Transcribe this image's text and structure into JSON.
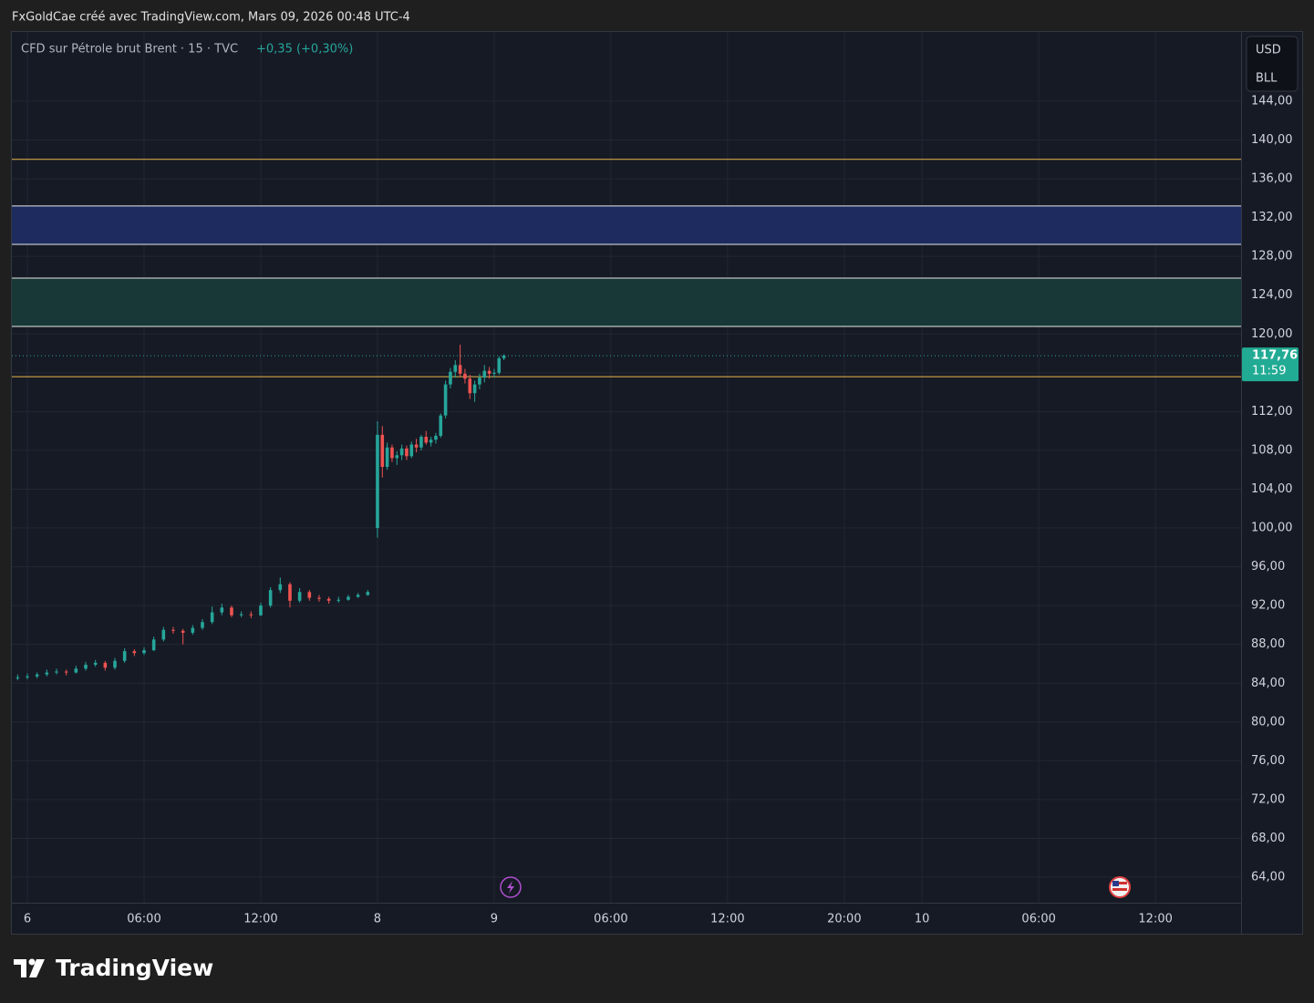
{
  "header": {
    "credit": "FxGoldCae créé avec TradingView.com, Mars 09, 2026 00:48 UTC-4"
  },
  "footer": {
    "logo": "TradingView"
  },
  "chart_data": {
    "type": "candlestick",
    "title": "CFD sur Pétrole brut Brent · 15 · TVC",
    "change": "+0,35 (+0,30%)",
    "currency": "USD",
    "unit": "BLL",
    "up_color": "#26a69a",
    "down_color": "#ef5350",
    "grid": true,
    "x": [
      -2,
      0,
      2,
      4,
      6,
      8,
      10,
      12,
      14,
      16,
      18,
      20,
      22,
      24,
      26,
      28,
      30,
      32,
      34,
      36,
      38,
      40,
      42,
      44,
      46,
      48,
      50,
      52,
      54,
      56,
      58,
      60,
      62,
      64,
      66,
      68,
      70,
      72,
      73,
      74,
      75,
      76,
      77,
      78,
      79,
      80,
      81,
      82,
      83,
      84,
      85,
      86,
      87,
      88,
      89,
      90,
      91,
      92,
      93,
      94,
      95,
      96,
      97,
      98
    ],
    "ohlc": [
      [
        84.5,
        84.9,
        84.3,
        84.6
      ],
      [
        84.6,
        85.0,
        84.4,
        84.7
      ],
      [
        84.7,
        85.1,
        84.5,
        84.9
      ],
      [
        84.9,
        85.4,
        84.7,
        85.1
      ],
      [
        85.1,
        85.5,
        84.9,
        85.2
      ],
      [
        85.2,
        85.4,
        84.8,
        85.1
      ],
      [
        85.1,
        85.8,
        85.0,
        85.5
      ],
      [
        85.5,
        86.2,
        85.3,
        85.9
      ],
      [
        85.9,
        86.4,
        85.7,
        86.1
      ],
      [
        86.1,
        86.3,
        85.3,
        85.6
      ],
      [
        85.6,
        86.6,
        85.4,
        86.3
      ],
      [
        86.3,
        87.6,
        86.1,
        87.3
      ],
      [
        87.3,
        87.5,
        86.8,
        87.1
      ],
      [
        87.1,
        87.7,
        86.9,
        87.4
      ],
      [
        87.4,
        88.8,
        87.3,
        88.5
      ],
      [
        88.5,
        89.8,
        88.3,
        89.5
      ],
      [
        89.5,
        89.8,
        89.1,
        89.4
      ],
      [
        89.4,
        89.6,
        88.0,
        89.2
      ],
      [
        89.2,
        90.0,
        89.0,
        89.7
      ],
      [
        89.7,
        90.6,
        89.5,
        90.3
      ],
      [
        90.3,
        91.9,
        90.1,
        91.3
      ],
      [
        91.3,
        92.2,
        91.0,
        91.8
      ],
      [
        91.8,
        92.0,
        90.8,
        91.0
      ],
      [
        91.0,
        91.4,
        90.8,
        91.1
      ],
      [
        91.1,
        91.4,
        90.7,
        91.0
      ],
      [
        91.0,
        92.3,
        90.9,
        92.0
      ],
      [
        92.0,
        93.9,
        91.8,
        93.6
      ],
      [
        93.6,
        94.9,
        93.3,
        94.2
      ],
      [
        94.2,
        94.4,
        91.8,
        92.5
      ],
      [
        92.5,
        93.8,
        92.3,
        93.4
      ],
      [
        93.4,
        93.6,
        92.5,
        92.8
      ],
      [
        92.8,
        93.1,
        92.4,
        92.7
      ],
      [
        92.7,
        92.9,
        92.2,
        92.5
      ],
      [
        92.5,
        92.9,
        92.3,
        92.6
      ],
      [
        92.6,
        93.1,
        92.5,
        92.9
      ],
      [
        92.9,
        93.3,
        92.8,
        93.1
      ],
      [
        93.1,
        93.6,
        93.0,
        93.4
      ],
      [
        100.0,
        111.0,
        99.0,
        109.6
      ],
      [
        109.6,
        110.5,
        105.2,
        106.3
      ],
      [
        106.3,
        108.8,
        106.0,
        108.3
      ],
      [
        108.3,
        108.6,
        106.8,
        107.2
      ],
      [
        107.2,
        107.9,
        106.5,
        107.5
      ],
      [
        107.5,
        108.6,
        107.0,
        108.2
      ],
      [
        108.2,
        108.5,
        107.0,
        107.4
      ],
      [
        107.4,
        108.9,
        107.2,
        108.6
      ],
      [
        108.6,
        109.2,
        107.8,
        108.3
      ],
      [
        108.3,
        109.6,
        108.0,
        109.4
      ],
      [
        109.4,
        110.0,
        108.6,
        108.8
      ],
      [
        108.8,
        109.4,
        108.4,
        109.1
      ],
      [
        109.1,
        109.8,
        108.7,
        109.5
      ],
      [
        109.5,
        111.8,
        109.3,
        111.6
      ],
      [
        111.6,
        115.2,
        111.3,
        114.8
      ],
      [
        114.8,
        116.5,
        114.4,
        116.1
      ],
      [
        116.1,
        117.3,
        115.5,
        116.8
      ],
      [
        116.8,
        118.9,
        115.6,
        115.9
      ],
      [
        115.9,
        116.4,
        114.9,
        115.4
      ],
      [
        115.4,
        115.8,
        113.3,
        113.9
      ],
      [
        113.9,
        115.2,
        113.0,
        114.8
      ],
      [
        114.8,
        115.9,
        114.3,
        115.5
      ],
      [
        115.5,
        116.8,
        115.0,
        116.2
      ],
      [
        116.2,
        116.6,
        115.4,
        115.9
      ],
      [
        115.9,
        116.4,
        115.5,
        116.0
      ],
      [
        116.0,
        117.7,
        115.8,
        117.5
      ],
      [
        117.5,
        117.9,
        117.3,
        117.76
      ]
    ],
    "xlim": [
      -3.19,
      249.6
    ],
    "xticks": [
      {
        "value": 0,
        "label": "6"
      },
      {
        "value": 24,
        "label": "06:00"
      },
      {
        "value": 48,
        "label": "12:00"
      },
      {
        "value": 72,
        "label": "8"
      },
      {
        "value": 96,
        "label": "9"
      },
      {
        "value": 120,
        "label": "06:00"
      },
      {
        "value": 144,
        "label": "12:00"
      },
      {
        "value": 168,
        "label": "20:00"
      },
      {
        "value": 184,
        "label": "10"
      },
      {
        "value": 208,
        "label": "06:00"
      },
      {
        "value": 232,
        "label": "12:00"
      }
    ],
    "ylim": [
      61.37,
      151.14
    ],
    "yticks": [
      {
        "value": 64,
        "label": "64,00"
      },
      {
        "value": 68,
        "label": "68,00"
      },
      {
        "value": 72,
        "label": "72,00"
      },
      {
        "value": 76,
        "label": "76,00"
      },
      {
        "value": 80,
        "label": "80,00"
      },
      {
        "value": 84,
        "label": "84,00"
      },
      {
        "value": 88,
        "label": "88,00"
      },
      {
        "value": 92,
        "label": "92,00"
      },
      {
        "value": 96,
        "label": "96,00"
      },
      {
        "value": 100,
        "label": "100,00"
      },
      {
        "value": 104,
        "label": "104,00"
      },
      {
        "value": 108,
        "label": "108,00"
      },
      {
        "value": 112,
        "label": "112,00"
      },
      {
        "value": 116,
        "label": "116,00"
      },
      {
        "value": 120,
        "label": "120,00"
      },
      {
        "value": 124,
        "label": "124,00"
      },
      {
        "value": 128,
        "label": "128,00"
      },
      {
        "value": 132,
        "label": "132,00"
      },
      {
        "value": 136,
        "label": "136,00"
      },
      {
        "value": 140,
        "label": "140,00"
      },
      {
        "value": 144,
        "label": "144,00"
      }
    ],
    "zones": [
      {
        "from": 129.24,
        "to": 133.2,
        "color": "#1d2b5e"
      },
      {
        "from": 120.78,
        "to": 125.76,
        "color": "#173836"
      }
    ],
    "hlines": [
      {
        "value": 138.0,
        "color": "#e8b84a"
      },
      {
        "value": 115.6,
        "color": "#e8b84a"
      }
    ],
    "last_price": {
      "value": 117.76,
      "label": "117,76"
    },
    "countdown": "11:59"
  }
}
